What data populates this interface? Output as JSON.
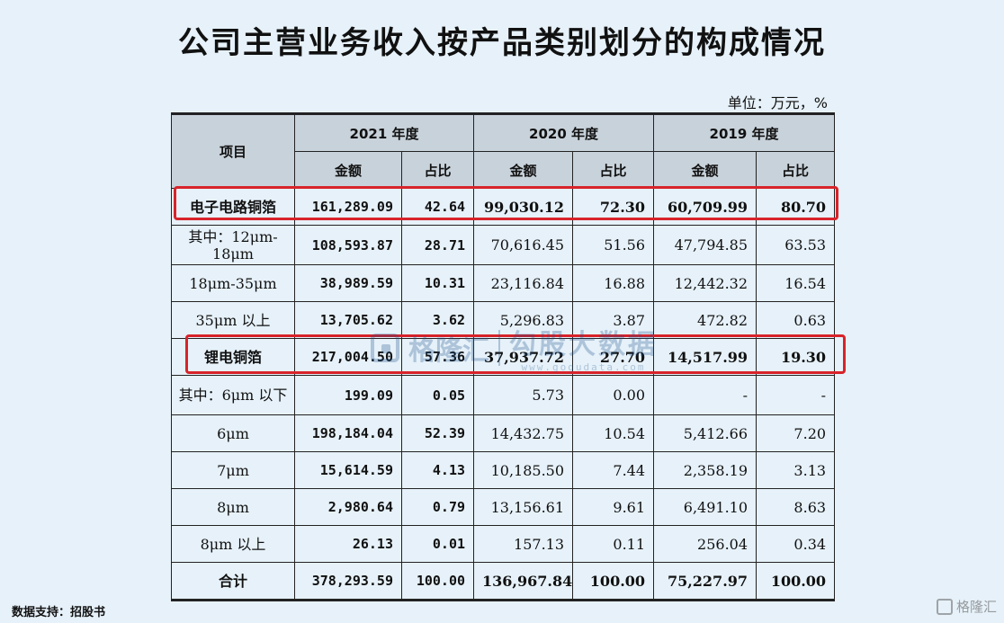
{
  "title": "公司主营业务收入按产品类别划分的构成情况",
  "unit": "单位：万元，%",
  "table": {
    "header": {
      "item": "项目",
      "years": [
        "2021 年度",
        "2020 年度",
        "2019 年度"
      ],
      "amount": "金额",
      "ratio": "占比"
    },
    "rows": [
      {
        "label": "电子电路铜箔",
        "values": [
          "161,289.09",
          "42.64",
          "99,030.12",
          "72.30",
          "60,709.99",
          "80.70"
        ]
      },
      {
        "label": "其中：12μm-18μm",
        "values": [
          "108,593.87",
          "28.71",
          "70,616.45",
          "51.56",
          "47,794.85",
          "63.53"
        ]
      },
      {
        "label": "18μm-35μm",
        "values": [
          "38,989.59",
          "10.31",
          "23,116.84",
          "16.88",
          "12,442.32",
          "16.54"
        ]
      },
      {
        "label": "35μm 以上",
        "values": [
          "13,705.62",
          "3.62",
          "5,296.83",
          "3.87",
          "472.82",
          "0.63"
        ]
      },
      {
        "label": "锂电铜箔",
        "values": [
          "217,004.50",
          "57.36",
          "37,937.72",
          "27.70",
          "14,517.99",
          "19.30"
        ]
      },
      {
        "label": "其中：6μm 以下",
        "values": [
          "199.09",
          "0.05",
          "5.73",
          "0.00",
          "-",
          "-"
        ]
      },
      {
        "label": "6μm",
        "values": [
          "198,184.04",
          "52.39",
          "14,432.75",
          "10.54",
          "5,412.66",
          "7.20"
        ]
      },
      {
        "label": "7μm",
        "values": [
          "15,614.59",
          "4.13",
          "10,185.50",
          "7.44",
          "2,358.19",
          "3.13"
        ]
      },
      {
        "label": "8μm",
        "values": [
          "2,980.64",
          "0.79",
          "13,156.61",
          "9.61",
          "6,491.10",
          "8.63"
        ]
      },
      {
        "label": "8μm 以上",
        "values": [
          "26.13",
          "0.01",
          "157.13",
          "0.11",
          "256.04",
          "0.34"
        ]
      },
      {
        "label": "合计",
        "values": [
          "378,293.59",
          "100.00",
          "136,967.84",
          "100.00",
          "75,227.97",
          "100.00"
        ]
      }
    ]
  },
  "watermark": {
    "text1": "格隆汇",
    "text2": "勾股大数据",
    "url": "www.gogudata.com"
  },
  "source": "数据支持：招股书",
  "brand": "格隆汇",
  "colors": {
    "background": "#e6f1f9",
    "header_fill": "#c8d2da",
    "highlight": "#d8232a"
  }
}
